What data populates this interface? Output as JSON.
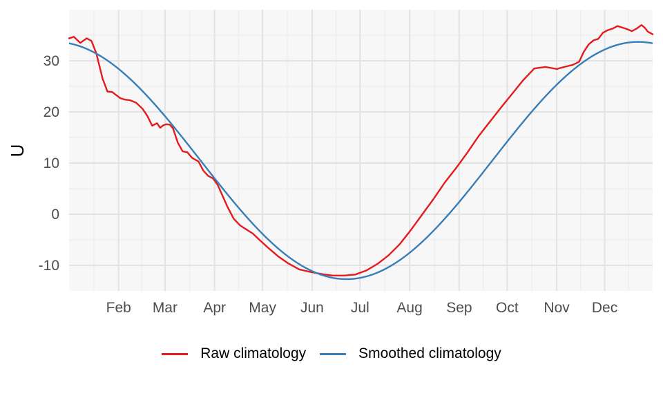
{
  "chart_data": {
    "type": "line",
    "ylabel": "U",
    "xlabel": "",
    "ylim": [
      -15,
      40
    ],
    "yticks": [
      -10,
      0,
      10,
      20,
      30
    ],
    "x_domain": [
      1,
      366
    ],
    "x_ticks": [
      {
        "label": "Feb",
        "day": 32
      },
      {
        "label": "Mar",
        "day": 61
      },
      {
        "label": "Apr",
        "day": 92
      },
      {
        "label": "May",
        "day": 122
      },
      {
        "label": "Jun",
        "day": 153
      },
      {
        "label": "Jul",
        "day": 183
      },
      {
        "label": "Aug",
        "day": 214
      },
      {
        "label": "Sep",
        "day": 245
      },
      {
        "label": "Oct",
        "day": 275
      },
      {
        "label": "Nov",
        "day": 306
      },
      {
        "label": "Dec",
        "day": 336
      }
    ],
    "grid": true,
    "legend_position": "bottom",
    "series": [
      {
        "name": "Raw climatology",
        "color": "#e41a1c",
        "x": [
          1,
          4,
          8,
          12,
          15,
          18,
          22,
          25,
          28,
          30,
          33,
          36,
          39,
          43,
          47,
          50,
          53,
          56,
          58,
          60,
          62,
          64,
          66,
          69,
          72,
          75,
          78,
          82,
          85,
          88,
          91,
          94,
          97,
          100,
          104,
          108,
          112,
          116,
          120,
          126,
          132,
          138,
          145,
          152,
          159,
          166,
          173,
          180,
          187,
          194,
          201,
          208,
          215,
          222,
          229,
          236,
          243,
          250,
          257,
          264,
          271,
          278,
          285,
          292,
          299,
          306,
          312,
          316,
          320,
          323,
          326,
          329,
          332,
          335,
          338,
          341,
          344,
          347,
          350,
          353,
          356,
          359,
          361,
          363,
          366
        ],
        "values": [
          34.4,
          34.7,
          33.5,
          34.4,
          33.9,
          31.5,
          26.5,
          24.0,
          23.9,
          23.4,
          22.7,
          22.4,
          22.3,
          21.8,
          20.6,
          19.2,
          17.3,
          17.8,
          16.9,
          17.4,
          17.6,
          17.5,
          16.8,
          14.0,
          12.3,
          12.1,
          11.0,
          10.3,
          8.5,
          7.5,
          7.0,
          5.7,
          3.6,
          1.5,
          -0.9,
          -2.2,
          -3.0,
          -3.8,
          -5.0,
          -6.7,
          -8.3,
          -9.6,
          -10.8,
          -11.3,
          -11.7,
          -12.0,
          -12.0,
          -11.8,
          -11.0,
          -9.7,
          -8.0,
          -5.8,
          -3.0,
          0.0,
          3.0,
          6.2,
          9.0,
          12.0,
          15.2,
          18.0,
          20.8,
          23.5,
          26.2,
          28.5,
          28.8,
          28.4,
          28.9,
          29.2,
          29.8,
          31.8,
          33.2,
          34.0,
          34.3,
          35.5,
          36.0,
          36.3,
          36.8,
          36.5,
          36.2,
          35.8,
          36.3,
          37.0,
          36.5,
          35.7,
          35.2
        ]
      },
      {
        "name": "Smoothed climatology",
        "color": "#377eb8",
        "model": {
          "mean": 10.5,
          "amplitude": 23.2,
          "peak_day": 357
        }
      }
    ]
  }
}
